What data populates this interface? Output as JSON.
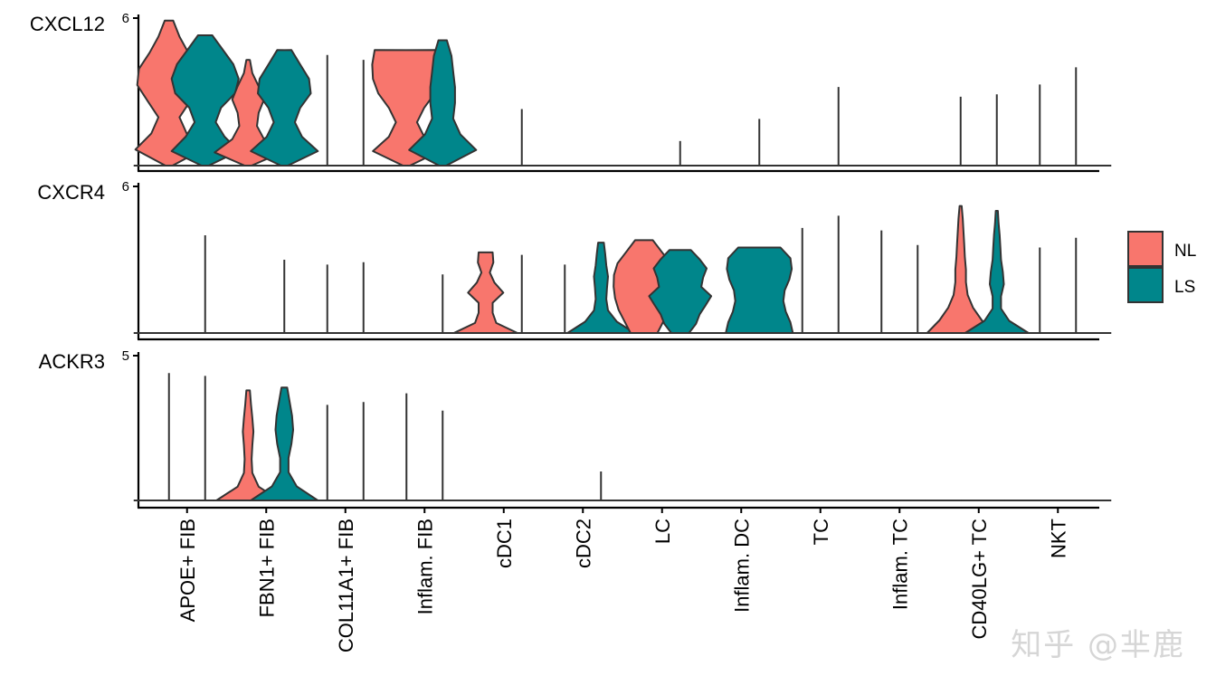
{
  "chart_data": {
    "type": "stacked-violin",
    "categories": [
      "APOE+ FIB",
      "FBN1+ FIB",
      "COL11A1+ FIB",
      "Inflam. FIB",
      "cDC1",
      "cDC2",
      "LC",
      "Inflam. DC",
      "TC",
      "Inflam. TC",
      "CD40LG+ TC",
      "NKT"
    ],
    "legend": [
      {
        "name": "NL",
        "color": "#F8766D"
      },
      {
        "name": "LS",
        "color": "#00868B"
      }
    ],
    "legend_position": "right",
    "panels": [
      {
        "gene": "CXCL12",
        "ymax": 6,
        "ymax_label": "6",
        "violins": [
          [
            {
              "type": "violin",
              "max": 5.9,
              "shape": [
                0.1,
                0.95,
                0.5,
                0.3,
                0.6,
                0.9,
                0.85,
                0.55,
                0.3,
                0.12
              ]
            },
            {
              "type": "violin",
              "max": 5.3,
              "shape": [
                0.1,
                0.95,
                0.55,
                0.3,
                0.45,
                0.85,
                0.95,
                0.8,
                0.5,
                0.2
              ]
            }
          ],
          [
            {
              "type": "violin",
              "max": 4.3,
              "shape": [
                0.1,
                0.95,
                0.45,
                0.25,
                0.3,
                0.45,
                0.3,
                0.12,
                0.05
              ]
            },
            {
              "type": "violin",
              "max": 4.7,
              "shape": [
                0.1,
                0.95,
                0.5,
                0.3,
                0.45,
                0.75,
                0.7,
                0.45,
                0.2
              ]
            }
          ],
          [
            {
              "type": "line",
              "max": 4.5
            },
            {
              "type": "line",
              "max": 4.3
            }
          ],
          [
            {
              "type": "violin",
              "max": 4.7,
              "shape": [
                0.1,
                0.95,
                0.5,
                0.3,
                0.5,
                0.8,
                0.95,
                0.97,
                0.9
              ]
            },
            {
              "type": "violin",
              "max": 5.1,
              "shape": [
                0.1,
                0.95,
                0.5,
                0.3,
                0.35,
                0.35,
                0.3,
                0.25,
                0.12
              ]
            }
          ],
          [
            {
              "type": "line",
              "max": 0.1
            },
            {
              "type": "line",
              "max": 2.3
            }
          ],
          [
            {
              "type": "line",
              "max": 0.1
            },
            {
              "type": "line",
              "max": 0.1
            }
          ],
          [
            {
              "type": "line",
              "max": 0.1
            },
            {
              "type": "line",
              "max": 1.0
            }
          ],
          [
            {
              "type": "line",
              "max": 0.1
            },
            {
              "type": "line",
              "max": 1.9
            }
          ],
          [
            {
              "type": "line",
              "max": 0.1
            },
            {
              "type": "line",
              "max": 3.2
            }
          ],
          [
            {
              "type": "line",
              "max": 0.1
            },
            {
              "type": "line",
              "max": 0.1
            }
          ],
          [
            {
              "type": "line",
              "max": 2.8
            },
            {
              "type": "line",
              "max": 2.9
            }
          ],
          [
            {
              "type": "line",
              "max": 3.3
            },
            {
              "type": "line",
              "max": 4.0
            }
          ]
        ]
      },
      {
        "gene": "CXCR4",
        "ymax": 6,
        "ymax_label": "6",
        "violins": [
          [
            {
              "type": "line",
              "max": 0.1
            },
            {
              "type": "line",
              "max": 4.0
            }
          ],
          [
            {
              "type": "line",
              "max": 0.1
            },
            {
              "type": "line",
              "max": 3.0
            }
          ],
          [
            {
              "type": "line",
              "max": 2.8
            },
            {
              "type": "line",
              "max": 2.9
            }
          ],
          [
            {
              "type": "line",
              "max": 0.1
            },
            {
              "type": "line",
              "max": 2.4
            }
          ],
          [
            {
              "type": "violin",
              "max": 3.3,
              "shape": [
                0.9,
                0.3,
                0.2,
                0.2,
                0.5,
                0.25,
                0.12,
                0.22,
                0.2
              ]
            },
            {
              "type": "line",
              "max": 3.2
            }
          ],
          [
            {
              "type": "line",
              "max": 2.8
            },
            {
              "type": "violin",
              "max": 3.7,
              "shape": [
                0.95,
                0.45,
                0.2,
                0.15,
                0.17,
                0.2,
                0.15,
                0.12,
                0.08
              ]
            }
          ],
          [
            {
              "type": "violin",
              "max": 3.8,
              "shape": [
                0.38,
                0.55,
                0.72,
                0.82,
                0.86,
                0.85,
                0.75,
                0.5,
                0.25
              ]
            },
            {
              "type": "violin",
              "max": 3.4,
              "shape": [
                0.25,
                0.45,
                0.55,
                0.72,
                0.88,
                0.6,
                0.65,
                0.75,
                0.55,
                0.3
              ]
            }
          ],
          [
            {
              "type": "line",
              "max": 0.1
            },
            {
              "type": "violin",
              "max": 3.5,
              "shape": [
                0.95,
                0.88,
                0.75,
                0.68,
                0.72,
                0.85,
                0.92,
                0.88,
                0.6
              ]
            }
          ],
          [
            {
              "type": "line",
              "max": 4.3
            },
            {
              "type": "line",
              "max": 4.8
            }
          ],
          [
            {
              "type": "line",
              "max": 4.2
            },
            {
              "type": "line",
              "max": 3.6
            }
          ],
          [
            {
              "type": "violin",
              "max": 5.2,
              "shape": [
                0.95,
                0.6,
                0.35,
                0.2,
                0.15,
                0.15,
                0.12,
                0.1,
                0.08,
                0.06,
                0.03
              ]
            },
            {
              "type": "violin",
              "max": 5.0,
              "shape": [
                0.9,
                0.35,
                0.12,
                0.12,
                0.2,
                0.17,
                0.12,
                0.1,
                0.08,
                0.05,
                0.03
              ]
            }
          ],
          [
            {
              "type": "line",
              "max": 3.5
            },
            {
              "type": "line",
              "max": 3.9
            }
          ]
        ]
      },
      {
        "gene": "ACKR3",
        "ymax": 5,
        "ymax_label": "5",
        "violins": [
          [
            {
              "type": "line",
              "max": 4.4
            },
            {
              "type": "line",
              "max": 4.3
            }
          ],
          [
            {
              "type": "violin",
              "max": 3.8,
              "shape": [
                0.9,
                0.3,
                0.12,
                0.1,
                0.12,
                0.15,
                0.12,
                0.08,
                0.05
              ]
            },
            {
              "type": "violin",
              "max": 3.9,
              "shape": [
                0.95,
                0.35,
                0.12,
                0.12,
                0.2,
                0.25,
                0.22,
                0.15,
                0.08
              ]
            }
          ],
          [
            {
              "type": "line",
              "max": 3.3
            },
            {
              "type": "line",
              "max": 3.4
            }
          ],
          [
            {
              "type": "line",
              "max": 3.7
            },
            {
              "type": "line",
              "max": 3.1
            }
          ],
          [
            {
              "type": "line",
              "max": 0.1
            },
            {
              "type": "line",
              "max": 0.1
            }
          ],
          [
            {
              "type": "line",
              "max": 0.1
            },
            {
              "type": "line",
              "max": 1.0
            }
          ],
          [
            {
              "type": "line",
              "max": 0.1
            },
            {
              "type": "line",
              "max": 0.1
            }
          ],
          [
            {
              "type": "line",
              "max": 0.1
            },
            {
              "type": "line",
              "max": 0.1
            }
          ],
          [
            {
              "type": "line",
              "max": 0.1
            },
            {
              "type": "line",
              "max": 0.1
            }
          ],
          [
            {
              "type": "line",
              "max": 0.1
            },
            {
              "type": "line",
              "max": 0.1
            }
          ],
          [
            {
              "type": "line",
              "max": 0.1
            },
            {
              "type": "line",
              "max": 0.1
            }
          ],
          [
            {
              "type": "line",
              "max": 0.1
            },
            {
              "type": "line",
              "max": 0.1
            }
          ]
        ]
      }
    ]
  },
  "watermark": "知乎 @芈鹿"
}
